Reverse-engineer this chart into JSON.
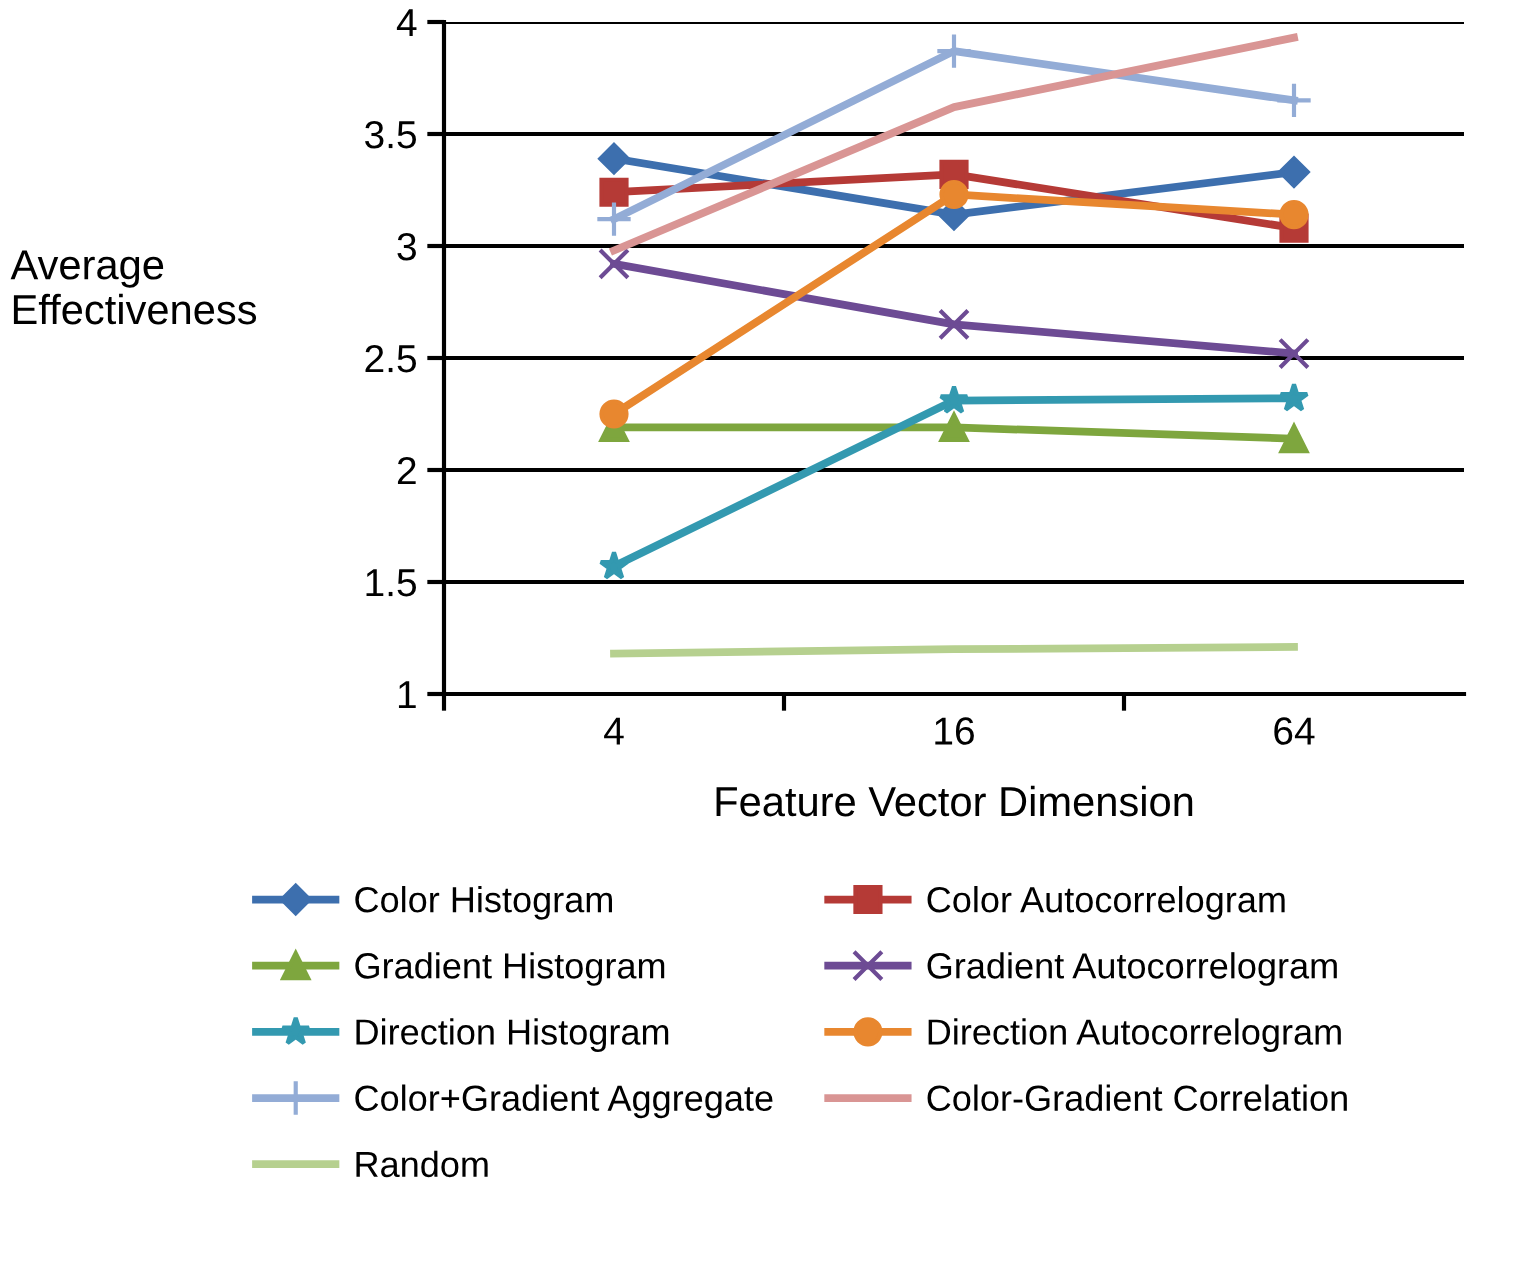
{
  "chart_data": {
    "type": "line",
    "xlabel": "Feature Vector Dimension",
    "ylabel": "Average\nEffectiveness",
    "categories": [
      "4",
      "16",
      "64"
    ],
    "ylim": [
      1,
      4
    ],
    "yticks": [
      1,
      1.5,
      2,
      2.5,
      3,
      3.5,
      4
    ],
    "grid": "y",
    "legend": "bottom",
    "series": [
      {
        "name": "Color Histogram",
        "color": "#3d6fae",
        "marker": "diamond",
        "values": [
          3.39,
          3.14,
          3.33
        ]
      },
      {
        "name": "Color Autocorrelogram",
        "color": "#b53a36",
        "marker": "square",
        "values": [
          3.24,
          3.32,
          3.08
        ]
      },
      {
        "name": "Gradient Histogram",
        "color": "#7ea63e",
        "marker": "triangle",
        "values": [
          2.19,
          2.19,
          2.14
        ]
      },
      {
        "name": "Gradient Autocorrelogram",
        "color": "#6d4b94",
        "marker": "cross",
        "values": [
          2.92,
          2.65,
          2.52
        ]
      },
      {
        "name": "Direction Histogram",
        "color": "#3399b0",
        "marker": "star",
        "values": [
          1.57,
          2.31,
          2.32
        ]
      },
      {
        "name": "Direction Autocorrelogram",
        "color": "#e8872f",
        "marker": "circle",
        "values": [
          2.25,
          3.23,
          3.14
        ]
      },
      {
        "name": "Color+Gradient Aggregate",
        "color": "#93acd6",
        "marker": "plus",
        "values": [
          3.12,
          3.87,
          3.65
        ]
      },
      {
        "name": "Color-Gradient Correlation",
        "color": "#d99594",
        "marker": "none",
        "values": [
          2.98,
          3.62,
          3.93
        ]
      },
      {
        "name": "Random",
        "color": "#b6d08f",
        "marker": "none",
        "values": [
          1.18,
          1.2,
          1.21
        ]
      }
    ]
  }
}
